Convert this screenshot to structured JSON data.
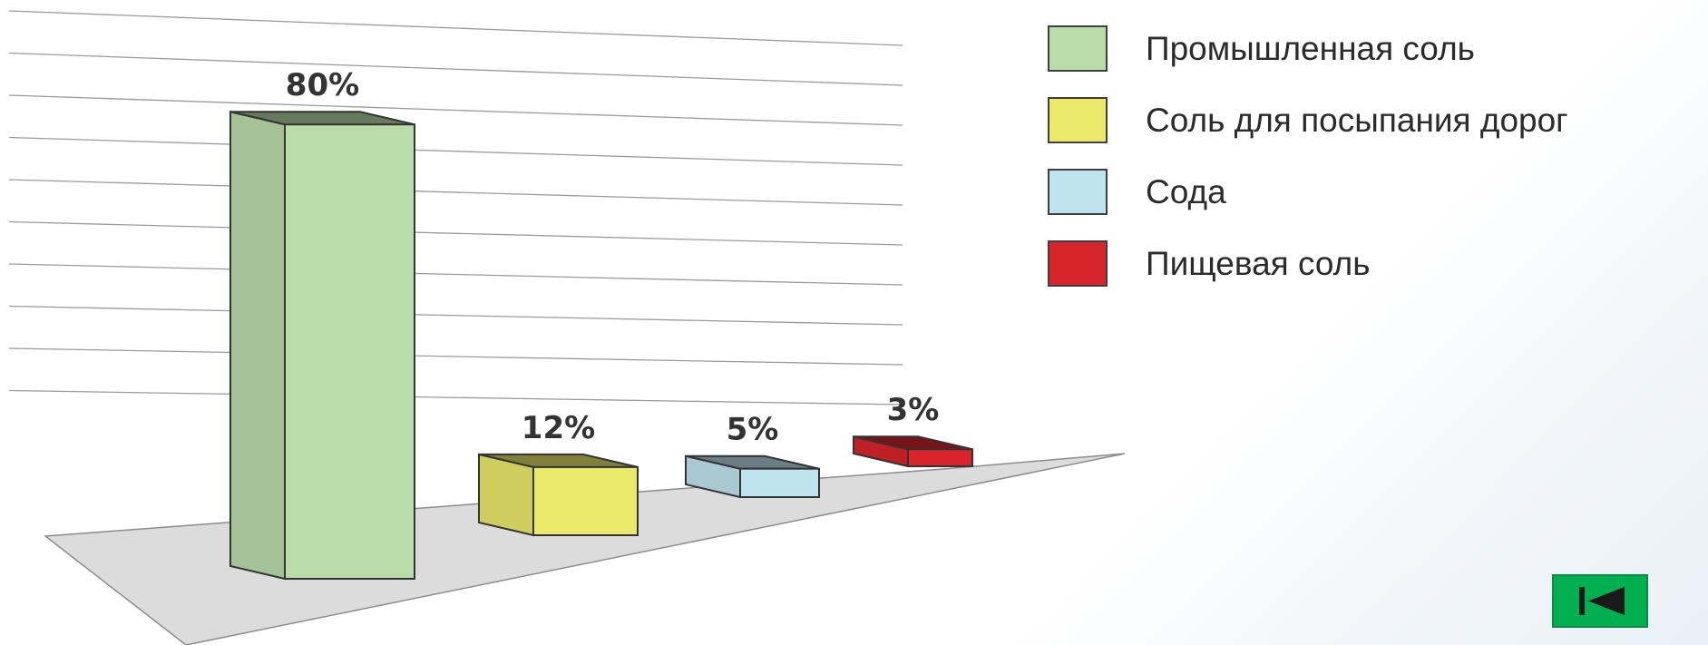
{
  "chart_data": {
    "type": "bar",
    "categories": [
      "Промышленная соль",
      "Соль для посыпания дорог",
      "Сода",
      "Пищевая соль"
    ],
    "values": [
      80,
      12,
      5,
      3
    ],
    "value_labels": [
      "80%",
      "12%",
      "5%",
      "3%"
    ],
    "ylim": [
      0,
      100
    ],
    "grid": true,
    "legend_position": "top-right",
    "colors": [
      "#b9dca9",
      "#eae96a",
      "#bfe3ef",
      "#d8242a"
    ]
  },
  "legend": {
    "items": [
      {
        "label": "Промышленная соль",
        "color": "#b9dca9"
      },
      {
        "label": "Соль для посыпания дорог",
        "color": "#eae96a"
      },
      {
        "label": "Сода",
        "color": "#bfe3ef"
      },
      {
        "label": "Пищевая соль",
        "color": "#d8242a"
      }
    ]
  },
  "navigation": {
    "back_icon": "skip-back-icon",
    "back_color": "#00b050"
  }
}
